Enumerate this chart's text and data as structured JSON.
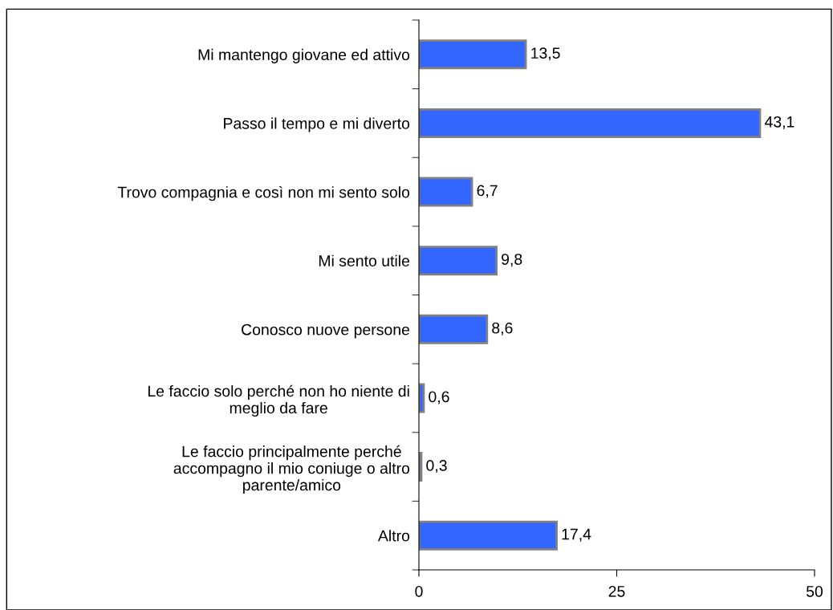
{
  "chart_data": {
    "type": "bar",
    "orientation": "horizontal",
    "categories": [
      "Mi mantengo giovane ed attivo",
      "Passo il tempo e mi diverto",
      "Trovo compagnia e così non mi sento solo",
      "Mi sento utile",
      "Conosco nuove persone",
      "Le faccio solo perché non ho niente di\nmeglio da fare",
      "Le faccio principalmente perché\naccompagno il mio coniuge o altro\nparente/amico",
      "Altro"
    ],
    "values": [
      13.5,
      43.1,
      6.7,
      9.8,
      8.6,
      0.6,
      0.3,
      17.4
    ],
    "value_labels": [
      "13,5",
      "43,1",
      "6,7",
      "9,8",
      "8,6",
      "0,6",
      "0,3",
      "17,4"
    ],
    "color": "#3366ff",
    "xlim": [
      0,
      50
    ],
    "xticks": [
      0,
      25,
      50
    ],
    "grid": false,
    "legend": false
  }
}
